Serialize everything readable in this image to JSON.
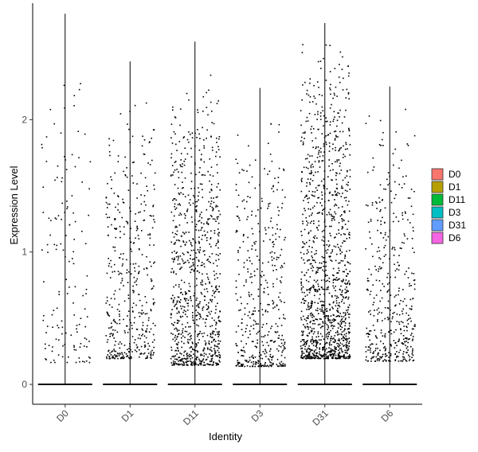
{
  "chart_data": {
    "type": "violin",
    "title": "",
    "xlabel": "Identity",
    "ylabel": "Expression Level",
    "ylim": [
      -0.15,
      2.88
    ],
    "y_ticks": [
      0,
      1,
      2
    ],
    "grid": false,
    "legend_position": "right",
    "categories": [
      "D0",
      "D1",
      "D11",
      "D3",
      "D31",
      "D6"
    ],
    "series": [
      {
        "name": "D0",
        "color": "#F8766D",
        "max": 2.8,
        "nonzero_range": [
          0.17,
          2.5
        ],
        "nonzero_density": "sparse"
      },
      {
        "name": "D1",
        "color": "#B79F00",
        "max": 2.44,
        "nonzero_range": [
          0.2,
          2.25
        ],
        "nonzero_density": "moderate"
      },
      {
        "name": "D11",
        "color": "#00BA38",
        "max": 2.59,
        "nonzero_range": [
          0.15,
          2.4
        ],
        "nonzero_density": "dense"
      },
      {
        "name": "D3",
        "color": "#00BFC4",
        "max": 2.24,
        "nonzero_range": [
          0.14,
          2.1
        ],
        "nonzero_density": "moderate"
      },
      {
        "name": "D31",
        "color": "#619CFF",
        "max": 2.73,
        "nonzero_range": [
          0.2,
          2.7
        ],
        "nonzero_density": "very dense"
      },
      {
        "name": "D6",
        "color": "#F564E3",
        "max": 2.25,
        "nonzero_range": [
          0.18,
          2.2
        ],
        "nonzero_density": "moderate"
      }
    ]
  }
}
